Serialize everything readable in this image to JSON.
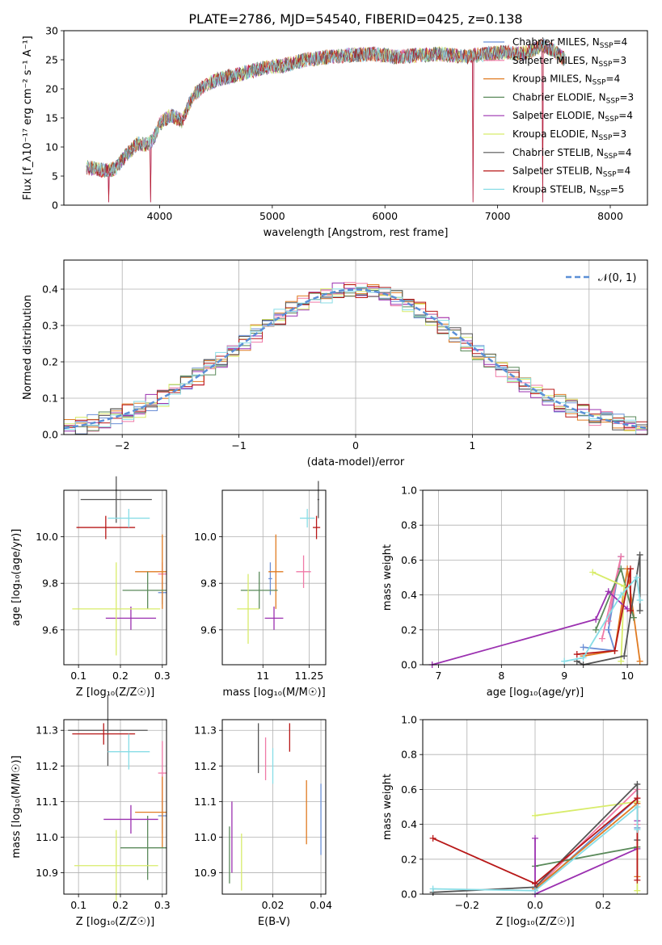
{
  "figure_title": "PLATE=2786, MJD=54540, FIBERID=0425, z=0.138",
  "colors": {
    "Chabrier MILES": "#6b8fd6",
    "Salpeter MILES": "#f07aa7",
    "Kroupa MILES": "#e07b22",
    "Chabrier ELODIE": "#5a8a5a",
    "Salpeter ELODIE": "#9b30b0",
    "Kroupa ELODIE": "#d8ec6a",
    "Chabrier STELIB": "#555555",
    "Salpeter STELIB": "#b81818",
    "Kroupa STELIB": "#88dde6",
    "normal_curve": "#5b8fd6"
  },
  "chart_data": [
    {
      "type": "line",
      "title": "",
      "xlabel": "wavelength [Angstrom, rest frame]",
      "ylabel": "Flux [f_λ10⁻¹⁷ erg cm⁻² s⁻¹ A⁻¹]",
      "xlim": [
        3150,
        8330
      ],
      "ylim": [
        0,
        30
      ],
      "xticks": [
        4000,
        5000,
        6000,
        7000,
        8000
      ],
      "yticks": [
        0,
        5,
        10,
        15,
        20,
        25,
        30
      ],
      "grid": false,
      "legend_position": "top-right",
      "legend": [
        "Chabrier MILES, N_SSP=4",
        "Salpeter MILES, N_SSP=3",
        "Kroupa MILES, N_SSP=4",
        "Chabrier ELODIE, N_SSP=3",
        "Salpeter ELODIE, N_SSP=4",
        "Kroupa ELODIE, N_SSP=3",
        "Chabrier STELIB, N_SSP=4",
        "Salpeter STELIB, N_SSP=4",
        "Kroupa STELIB, N_SSP=5"
      ],
      "spectrum_envelope": {
        "x": [
          3350,
          3500,
          3600,
          3700,
          3800,
          3900,
          3950,
          4000,
          4100,
          4200,
          4300,
          4400,
          4500,
          4700,
          4900,
          5100,
          5300,
          5500,
          5700,
          5900,
          6100,
          6300,
          6500,
          6700,
          6900,
          7100,
          7200,
          7300,
          7400,
          7500,
          7600
        ],
        "y": [
          6.5,
          6.0,
          6.2,
          8.5,
          10.5,
          10.5,
          11.5,
          14.0,
          15.5,
          14.5,
          19.0,
          20.5,
          21.5,
          22.5,
          23.5,
          24.0,
          25.0,
          25.5,
          25.8,
          26.0,
          25.5,
          25.8,
          26.0,
          25.5,
          26.0,
          26.3,
          26.0,
          26.5,
          27.5,
          26.5,
          25.0
        ]
      },
      "dropouts": [
        {
          "x": 3550,
          "y": 0.5
        },
        {
          "x": 3920,
          "y": 0.5
        },
        {
          "x": 6780,
          "y": 0.5
        },
        {
          "x": 7400,
          "y": 0.5
        }
      ]
    },
    {
      "type": "histogram",
      "title": "",
      "xlabel": "(data-model)/error",
      "ylabel": "Normed distribution",
      "xlim": [
        -2.5,
        2.5
      ],
      "ylim": [
        0,
        0.48
      ],
      "xticks": [
        -2,
        -1,
        0,
        1,
        2
      ],
      "yticks": [
        0.0,
        0.1,
        0.2,
        0.3,
        0.4
      ],
      "grid": true,
      "legend_position": "top-right",
      "legend": [
        "𝒩(0, 1)"
      ],
      "bin_width": 0.1,
      "bin_start": -2.5,
      "n_bins": 50
    },
    {
      "type": "scatter",
      "title": "",
      "xlabel": "Z [log₁₀(Z/Z☉)]",
      "ylabel": "age  [log₁₀(age/yr)]",
      "xlim": [
        0.065,
        0.31
      ],
      "ylim": [
        9.45,
        10.2
      ],
      "xticks": [
        0.1,
        0.2,
        0.3
      ],
      "yticks": [
        9.6,
        9.8,
        10.0
      ],
      "grid": true,
      "points": [
        {
          "series": "Chabrier MILES",
          "x": 0.3,
          "xerr": 0.01,
          "y": 9.76,
          "yerr": 0.05
        },
        {
          "series": "Salpeter MILES",
          "x": 0.3,
          "xerr": 0.01,
          "y": 9.84,
          "yerr": 0.05
        },
        {
          "series": "Kroupa MILES",
          "x": 0.3,
          "xerr": 0.065,
          "y": 9.85,
          "yerr": 0.16
        },
        {
          "series": "Chabrier ELODIE",
          "x": 0.265,
          "xerr": 0.06,
          "y": 9.77,
          "yerr": 0.08
        },
        {
          "series": "Salpeter ELODIE",
          "x": 0.225,
          "xerr": 0.06,
          "y": 9.65,
          "yerr": 0.05
        },
        {
          "series": "Kroupa ELODIE",
          "x": 0.19,
          "xerr": 0.105,
          "y": 9.69,
          "yerr": 0.2
        },
        {
          "series": "Chabrier STELIB",
          "x": 0.19,
          "xerr": 0.085,
          "y": 10.16,
          "yerr": 0.1
        },
        {
          "series": "Salpeter STELIB",
          "x": 0.165,
          "xerr": 0.07,
          "y": 10.04,
          "yerr": 0.05
        },
        {
          "series": "Kroupa STELIB",
          "x": 0.22,
          "xerr": 0.05,
          "y": 10.08,
          "yerr": 0.04
        }
      ]
    },
    {
      "type": "scatter",
      "title": "",
      "xlabel": "mass [log₁₀(M/M☉)]",
      "ylabel": "",
      "xlim": [
        10.78,
        11.34
      ],
      "ylim": [
        9.45,
        10.2
      ],
      "xticks": [
        11.0,
        11.25
      ],
      "yticks": [
        9.6,
        9.8,
        10.0
      ],
      "grid": true,
      "points": [
        {
          "series": "Chabrier MILES",
          "x": 11.04,
          "xerr": 0.01,
          "y": 9.82,
          "yerr": 0.07
        },
        {
          "series": "Salpeter MILES",
          "x": 11.22,
          "xerr": 0.04,
          "y": 9.85,
          "yerr": 0.07
        },
        {
          "series": "Kroupa MILES",
          "x": 11.07,
          "xerr": 0.04,
          "y": 9.85,
          "yerr": 0.16
        },
        {
          "series": "Chabrier ELODIE",
          "x": 10.98,
          "xerr": 0.1,
          "y": 9.77,
          "yerr": 0.08
        },
        {
          "series": "Salpeter ELODIE",
          "x": 11.06,
          "xerr": 0.05,
          "y": 9.65,
          "yerr": 0.05
        },
        {
          "series": "Kroupa ELODIE",
          "x": 10.92,
          "xerr": 0.06,
          "y": 9.69,
          "yerr": 0.15
        },
        {
          "series": "Chabrier STELIB",
          "x": 11.3,
          "xerr": 0.005,
          "y": 10.16,
          "yerr": 0.08
        },
        {
          "series": "Salpeter STELIB",
          "x": 11.29,
          "xerr": 0.02,
          "y": 10.04,
          "yerr": 0.05
        },
        {
          "series": "Kroupa STELIB",
          "x": 11.24,
          "xerr": 0.04,
          "y": 10.08,
          "yerr": 0.04
        }
      ]
    },
    {
      "type": "line",
      "title": "",
      "xlabel": "age  [log₁₀(age/yr)]",
      "ylabel": "mass weight",
      "xlim": [
        6.75,
        10.32
      ],
      "ylim": [
        0,
        1.0
      ],
      "xticks": [
        7,
        8,
        9,
        10
      ],
      "yticks": [
        0.0,
        0.2,
        0.4,
        0.6,
        0.8,
        1.0
      ],
      "grid": true,
      "series": [
        {
          "series": "Chabrier MILES",
          "x": [
            9.3,
            9.8,
            9.7,
            9.9
          ],
          "y": [
            0.1,
            0.08,
            0.2,
            0.62
          ]
        },
        {
          "series": "Salpeter MILES",
          "x": [
            9.6,
            9.9,
            9.7
          ],
          "y": [
            0.15,
            0.62,
            0.25
          ]
        },
        {
          "series": "Kroupa MILES",
          "x": [
            9.3,
            9.8,
            10.0,
            10.2
          ],
          "y": [
            0.05,
            0.08,
            0.55,
            0.02
          ]
        },
        {
          "series": "Chabrier ELODIE",
          "x": [
            9.5,
            9.9,
            10.1
          ],
          "y": [
            0.2,
            0.55,
            0.27
          ]
        },
        {
          "series": "Salpeter ELODIE",
          "x": [
            6.9,
            9.5,
            9.7,
            10.0
          ],
          "y": [
            0.0,
            0.26,
            0.42,
            0.32
          ]
        },
        {
          "series": "Kroupa ELODIE",
          "x": [
            9.45,
            9.95,
            9.9
          ],
          "y": [
            0.53,
            0.45,
            0.02
          ]
        },
        {
          "series": "Chabrier STELIB",
          "x": [
            9.2,
            9.3,
            9.95,
            10.2,
            10.2
          ],
          "y": [
            0.02,
            0.0,
            0.05,
            0.63,
            0.31
          ]
        },
        {
          "series": "Salpeter STELIB",
          "x": [
            9.2,
            9.8,
            10.05,
            10.05
          ],
          "y": [
            0.06,
            0.08,
            0.55,
            0.31
          ]
        },
        {
          "series": "Kroupa STELIB",
          "x": [
            9.0,
            9.3,
            9.9,
            10.15,
            10.2
          ],
          "y": [
            0.02,
            0.04,
            0.4,
            0.5,
            0.37
          ]
        }
      ]
    },
    {
      "type": "scatter",
      "title": "",
      "xlabel": "Z [log₁₀(Z/Z☉)]",
      "ylabel": "mass [log₁₀(M/M☉)]",
      "xlim": [
        0.065,
        0.31
      ],
      "ylim": [
        10.84,
        11.33
      ],
      "xticks": [
        0.1,
        0.2,
        0.3
      ],
      "yticks": [
        10.9,
        11.0,
        11.1,
        11.2,
        11.3
      ],
      "grid": true,
      "points": [
        {
          "series": "Chabrier MILES",
          "x": 0.3,
          "xerr": 0.01,
          "y": 11.06,
          "yerr": 0.05
        },
        {
          "series": "Salpeter MILES",
          "x": 0.3,
          "xerr": 0.01,
          "y": 11.18,
          "yerr": 0.09
        },
        {
          "series": "Kroupa MILES",
          "x": 0.3,
          "xerr": 0.065,
          "y": 11.07,
          "yerr": 0.1
        },
        {
          "series": "Chabrier ELODIE",
          "x": 0.265,
          "xerr": 0.065,
          "y": 10.97,
          "yerr": 0.09
        },
        {
          "series": "Salpeter ELODIE",
          "x": 0.225,
          "xerr": 0.065,
          "y": 11.05,
          "yerr": 0.04
        },
        {
          "series": "Kroupa ELODIE",
          "x": 0.19,
          "xerr": 0.1,
          "y": 10.92,
          "yerr": 0.1
        },
        {
          "series": "Chabrier STELIB",
          "x": 0.17,
          "xerr": 0.095,
          "y": 11.3,
          "yerr": 0.1
        },
        {
          "series": "Salpeter STELIB",
          "x": 0.16,
          "xerr": 0.075,
          "y": 11.29,
          "yerr": 0.03
        },
        {
          "series": "Kroupa STELIB",
          "x": 0.22,
          "xerr": 0.05,
          "y": 11.24,
          "yerr": 0.05
        }
      ]
    },
    {
      "type": "scatter",
      "title": "",
      "xlabel": "E(B-V)",
      "ylabel": "",
      "xlim": [
        -0.001,
        0.042
      ],
      "ylim": [
        10.84,
        11.33
      ],
      "xticks": [
        0.02,
        0.04
      ],
      "yticks": [
        10.9,
        11.0,
        11.1,
        11.2,
        11.3
      ],
      "grid": true,
      "points": [
        {
          "series": "Chabrier MILES",
          "x": 0.04,
          "y": 11.05,
          "yerr": 0.1
        },
        {
          "series": "Salpeter MILES",
          "x": 0.017,
          "y": 11.22,
          "yerr": 0.06
        },
        {
          "series": "Kroupa MILES",
          "x": 0.034,
          "y": 11.07,
          "yerr": 0.09
        },
        {
          "series": "Chabrier ELODIE",
          "x": 0.002,
          "y": 10.95,
          "yerr": 0.08
        },
        {
          "series": "Salpeter ELODIE",
          "x": 0.003,
          "y": 11.0,
          "yerr": 0.1
        },
        {
          "series": "Kroupa ELODIE",
          "x": 0.007,
          "y": 10.93,
          "yerr": 0.08
        },
        {
          "series": "Chabrier STELIB",
          "x": 0.014,
          "y": 11.25,
          "yerr": 0.07
        },
        {
          "series": "Salpeter STELIB",
          "x": 0.027,
          "y": 11.28,
          "yerr": 0.04
        },
        {
          "series": "Kroupa STELIB",
          "x": 0.02,
          "y": 11.2,
          "yerr": 0.05
        }
      ]
    },
    {
      "type": "line",
      "title": "",
      "xlabel": "Z [log₁₀(Z/Z☉)]",
      "ylabel": "mass weight",
      "xlim": [
        -0.33,
        0.33
      ],
      "ylim": [
        0,
        1.0
      ],
      "xticks": [
        -0.2,
        0.0,
        0.2
      ],
      "yticks": [
        0.0,
        0.2,
        0.4,
        0.6,
        0.8,
        1.0
      ],
      "grid": true,
      "series": [
        {
          "series": "Chabrier MILES",
          "x": [
            0.0,
            0.3,
            0.3
          ],
          "y": [
            0.02,
            0.55,
            0.38
          ]
        },
        {
          "series": "Salpeter MILES",
          "x": [
            0.0,
            0.3,
            0.3
          ],
          "y": [
            0.03,
            0.6,
            0.4
          ]
        },
        {
          "series": "Kroupa MILES",
          "x": [
            0.0,
            0.3,
            0.3
          ],
          "y": [
            0.03,
            0.52,
            0.1
          ]
        },
        {
          "series": "Chabrier ELODIE",
          "x": [
            0.0,
            0.3
          ],
          "y": [
            0.16,
            0.27
          ]
        },
        {
          "series": "Salpeter ELODIE",
          "x": [
            0.0,
            0.0,
            0.3,
            0.3
          ],
          "y": [
            0.32,
            0.0,
            0.26,
            0.42
          ]
        },
        {
          "series": "Kroupa ELODIE",
          "x": [
            0.0,
            0.3,
            0.3
          ],
          "y": [
            0.45,
            0.53,
            0.02
          ]
        },
        {
          "series": "Chabrier STELIB",
          "x": [
            -0.3,
            -0.3,
            0.0,
            0.3,
            0.3
          ],
          "y": [
            0.01,
            0.01,
            0.04,
            0.63,
            0.31
          ]
        },
        {
          "series": "Salpeter STELIB",
          "x": [
            -0.3,
            0.0,
            0.3,
            0.3
          ],
          "y": [
            0.32,
            0.06,
            0.55,
            0.08
          ]
        },
        {
          "series": "Kroupa STELIB",
          "x": [
            -0.3,
            0.0,
            0.3,
            0.3
          ],
          "y": [
            0.03,
            0.02,
            0.5,
            0.37
          ]
        }
      ]
    }
  ]
}
